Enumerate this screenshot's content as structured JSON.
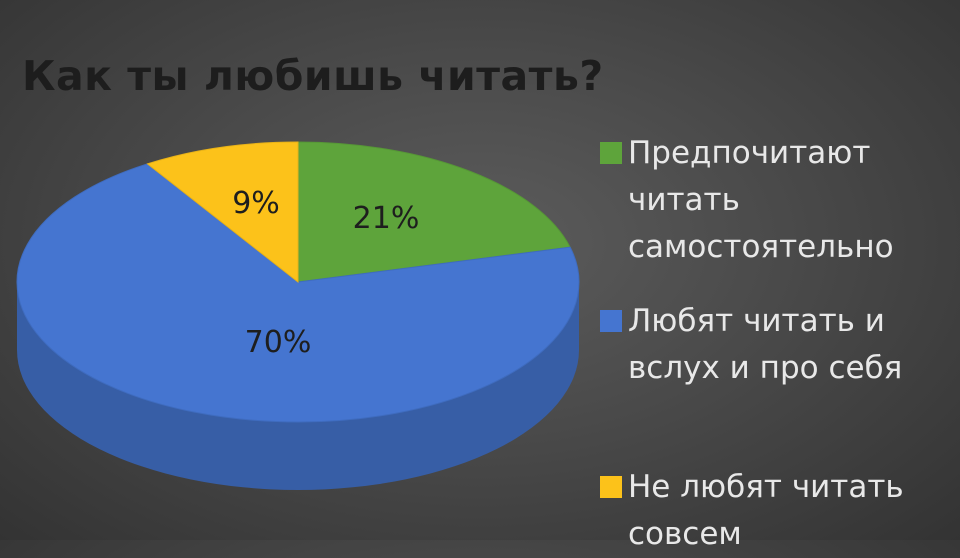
{
  "chart_data": {
    "type": "pie",
    "title": "Как ты любишь читать?",
    "slices": [
      {
        "label": "Предпочитают читать самостоятельно",
        "value": 21,
        "display": "21%",
        "color": "#5ea43b"
      },
      {
        "label": "Любят читать и вслух и про себя",
        "value": 70,
        "display": "70%",
        "color": "#4575d0"
      },
      {
        "label": "Не любят читать совсем",
        "value": 9,
        "display": "9%",
        "color": "#fcc21a"
      }
    ],
    "legend_position": "right"
  }
}
